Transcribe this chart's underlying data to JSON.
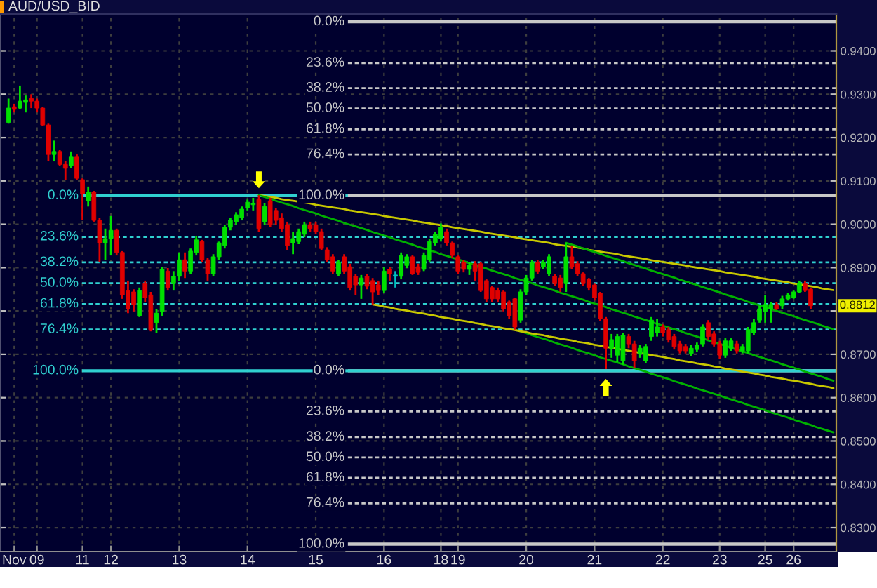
{
  "chart_data": {
    "type": "candlestick",
    "title": "AUD/USD_BID",
    "categories": [
      null,
      "Nov",
      null,
      null,
      null,
      "09",
      null,
      null,
      null,
      null,
      null,
      null,
      null,
      "11",
      null,
      null,
      null,
      null,
      "12",
      null,
      null,
      null,
      null,
      null,
      null,
      null,
      null,
      null,
      null,
      null,
      "13",
      null,
      null,
      null,
      null,
      null,
      null,
      null,
      null,
      null,
      null,
      null,
      "14",
      null,
      null,
      null,
      null,
      null,
      null,
      null,
      null,
      null,
      null,
      null,
      "15",
      null,
      null,
      null,
      null,
      null,
      null,
      null,
      null,
      null,
      null,
      null,
      "16",
      null,
      null,
      null,
      null,
      null,
      null,
      null,
      null,
      null,
      "18",
      null,
      null,
      "19",
      null,
      null,
      null,
      null,
      null,
      null,
      null,
      null,
      null,
      null,
      null,
      "20",
      null,
      null,
      null,
      null,
      null,
      null,
      null,
      null,
      null,
      null,
      null,
      "21",
      null,
      null,
      null,
      null,
      null,
      null,
      null,
      null,
      null,
      null,
      null,
      "22",
      null,
      null,
      null,
      null,
      null,
      null,
      null,
      null,
      null,
      "23",
      null,
      null,
      null,
      null,
      null,
      null,
      null,
      "25",
      null,
      null,
      null,
      null,
      "26",
      null,
      null,
      null,
      null,
      null,
      null,
      null
    ],
    "ohlc": [
      [
        0.9235,
        0.929,
        0.9232,
        0.9268
      ],
      [
        0.9271,
        0.9278,
        0.9258,
        0.9265
      ],
      [
        0.9268,
        0.932,
        0.9265,
        0.9284
      ],
      [
        0.9281,
        0.9297,
        0.9258,
        0.9287
      ],
      [
        0.929,
        0.93,
        0.9268,
        0.9284
      ],
      [
        0.9284,
        0.929,
        0.9258,
        0.9268
      ],
      [
        0.9268,
        0.9271,
        0.9226,
        0.9229
      ],
      [
        0.9229,
        0.9232,
        0.9145,
        0.9161
      ],
      [
        0.9161,
        0.9193,
        0.9145,
        0.9168
      ],
      [
        0.9168,
        0.9171,
        0.9135,
        0.9138
      ],
      [
        0.9138,
        0.9145,
        0.9103,
        0.9129
      ],
      [
        0.9135,
        0.9168,
        0.9129,
        0.9155
      ],
      [
        0.9155,
        0.9161,
        0.9103,
        0.9106
      ],
      [
        0.9103,
        0.9106,
        0.9009,
        0.907
      ],
      [
        0.9054,
        0.9087,
        0.9041,
        0.9074
      ],
      [
        0.9074,
        0.9077,
        0.9006,
        0.9009
      ],
      [
        0.9009,
        0.9015,
        0.8912,
        0.8957
      ],
      [
        0.8957,
        0.899,
        0.8918,
        0.8967
      ],
      [
        0.8967,
        0.9019,
        0.8928,
        0.8986
      ],
      [
        0.8986,
        0.899,
        0.8928,
        0.8935
      ],
      [
        0.8935,
        0.8938,
        0.8828,
        0.8837
      ],
      [
        0.8847,
        0.887,
        0.8795,
        0.8805
      ],
      [
        0.8844,
        0.885,
        0.8799,
        0.8815
      ],
      [
        0.8789,
        0.8854,
        0.8786,
        0.8847
      ],
      [
        0.8863,
        0.887,
        0.8821,
        0.8831
      ],
      [
        0.8837,
        0.8844,
        0.8753,
        0.8757
      ],
      [
        0.8773,
        0.8805,
        0.875,
        0.8795
      ],
      [
        0.8799,
        0.8902,
        0.8789,
        0.8896
      ],
      [
        0.8892,
        0.8899,
        0.8847,
        0.8854
      ],
      [
        0.8863,
        0.8892,
        0.8847,
        0.888
      ],
      [
        0.888,
        0.8935,
        0.887,
        0.8918
      ],
      [
        0.8918,
        0.8935,
        0.8876,
        0.8892
      ],
      [
        0.8892,
        0.8944,
        0.8886,
        0.8938
      ],
      [
        0.8935,
        0.8973,
        0.8928,
        0.8964
      ],
      [
        0.896,
        0.8964,
        0.8912,
        0.8918
      ],
      [
        0.8918,
        0.8922,
        0.887,
        0.8886
      ],
      [
        0.8886,
        0.8931,
        0.888,
        0.8925
      ],
      [
        0.8925,
        0.896,
        0.8918,
        0.8957
      ],
      [
        0.8951,
        0.8999,
        0.8944,
        0.8993
      ],
      [
        0.8993,
        0.9015,
        0.8986,
        0.9009
      ],
      [
        0.9006,
        0.9028,
        0.8999,
        0.9022
      ],
      [
        0.9015,
        0.9041,
        0.9009,
        0.9035
      ],
      [
        0.9038,
        0.9057,
        0.9032,
        0.9051
      ],
      [
        0.9045,
        0.9061,
        0.9032,
        0.9048
      ],
      [
        0.9057,
        0.9067,
        0.8983,
        0.899
      ],
      [
        0.9006,
        0.9048,
        0.8999,
        0.9041
      ],
      [
        0.9054,
        0.9061,
        0.8993,
        0.8999
      ],
      [
        0.9032,
        0.9038,
        0.8999,
        0.9009
      ],
      [
        0.9015,
        0.9025,
        0.8983,
        0.899
      ],
      [
        0.8999,
        0.9006,
        0.8941,
        0.8951
      ],
      [
        0.8957,
        0.8983,
        0.8931,
        0.8967
      ],
      [
        0.896,
        0.899,
        0.8954,
        0.8983
      ],
      [
        0.8977,
        0.9006,
        0.897,
        0.8999
      ],
      [
        0.8999,
        0.9006,
        0.8983,
        0.899
      ],
      [
        0.8999,
        0.9006,
        0.8977,
        0.8983
      ],
      [
        0.8983,
        0.899,
        0.8941,
        0.8944
      ],
      [
        0.8941,
        0.8947,
        0.8912,
        0.8918
      ],
      [
        0.8925,
        0.8931,
        0.8886,
        0.8892
      ],
      [
        0.8886,
        0.8918,
        0.888,
        0.8912
      ],
      [
        0.8925,
        0.8931,
        0.8886,
        0.8892
      ],
      [
        0.8902,
        0.8909,
        0.8847,
        0.8854
      ],
      [
        0.888,
        0.8886,
        0.8837,
        0.886
      ],
      [
        0.886,
        0.8883,
        0.8828,
        0.8876
      ],
      [
        0.888,
        0.8886,
        0.885,
        0.8857
      ],
      [
        0.887,
        0.8876,
        0.8815,
        0.8844
      ],
      [
        0.886,
        0.887,
        0.8837,
        0.8847
      ],
      [
        0.8847,
        0.8902,
        0.8841,
        0.8892
      ],
      [
        0.8896,
        0.8902,
        0.887,
        0.8886
      ],
      [
        0.888,
        0.8892,
        0.8854,
        0.8883
      ],
      [
        0.888,
        0.8935,
        0.8873,
        0.8928
      ],
      [
        0.8905,
        0.8931,
        0.8899,
        0.8925
      ],
      [
        0.8925,
        0.8928,
        0.8883,
        0.8886
      ],
      [
        0.8902,
        0.8909,
        0.8883,
        0.8889
      ],
      [
        0.8896,
        0.8935,
        0.8892,
        0.8928
      ],
      [
        0.8918,
        0.8967,
        0.8912,
        0.896
      ],
      [
        0.8957,
        0.8983,
        0.8951,
        0.8977
      ],
      [
        0.8967,
        0.9002,
        0.896,
        0.8993
      ],
      [
        0.8983,
        0.899,
        0.8951,
        0.8957
      ],
      [
        0.8957,
        0.896,
        0.8922,
        0.8928
      ],
      [
        0.8925,
        0.8928,
        0.8886,
        0.8892
      ],
      [
        0.8912,
        0.8918,
        0.8889,
        0.8896
      ],
      [
        0.8896,
        0.8912,
        0.8883,
        0.8905
      ],
      [
        0.8909,
        0.8915,
        0.887,
        0.8892
      ],
      [
        0.8909,
        0.8912,
        0.8844,
        0.8847
      ],
      [
        0.887,
        0.8873,
        0.8821,
        0.8828
      ],
      [
        0.8854,
        0.8857,
        0.8821,
        0.8828
      ],
      [
        0.8847,
        0.8854,
        0.8821,
        0.8828
      ],
      [
        0.8844,
        0.8847,
        0.8799,
        0.8805
      ],
      [
        0.8821,
        0.8824,
        0.8782,
        0.8789
      ],
      [
        0.8828,
        0.8831,
        0.8757,
        0.8763
      ],
      [
        0.8779,
        0.885,
        0.8773,
        0.8844
      ],
      [
        0.8844,
        0.8883,
        0.8837,
        0.8876
      ],
      [
        0.8876,
        0.8918,
        0.887,
        0.8912
      ],
      [
        0.8912,
        0.8918,
        0.8886,
        0.8892
      ],
      [
        0.8902,
        0.8918,
        0.8896,
        0.8912
      ],
      [
        0.8886,
        0.8931,
        0.888,
        0.8925
      ],
      [
        0.888,
        0.8886,
        0.8857,
        0.8863
      ],
      [
        0.8876,
        0.8883,
        0.8844,
        0.8854
      ],
      [
        0.8863,
        0.8957,
        0.8844,
        0.8925
      ],
      [
        0.8925,
        0.8951,
        0.8896,
        0.8902
      ],
      [
        0.8909,
        0.8915,
        0.888,
        0.8886
      ],
      [
        0.8886,
        0.8889,
        0.8857,
        0.8863
      ],
      [
        0.8873,
        0.8876,
        0.8847,
        0.8854
      ],
      [
        0.886,
        0.8863,
        0.8824,
        0.8831
      ],
      [
        0.8841,
        0.8844,
        0.8776,
        0.8782
      ],
      [
        0.8782,
        0.8786,
        0.8666,
        0.8714
      ],
      [
        0.8714,
        0.8747,
        0.8692,
        0.8734
      ],
      [
        0.8698,
        0.8747,
        0.8682,
        0.8741
      ],
      [
        0.8685,
        0.875,
        0.8676,
        0.8744
      ],
      [
        0.8741,
        0.8747,
        0.8714,
        0.8724
      ],
      [
        0.8724,
        0.8731,
        0.8669,
        0.8685
      ],
      [
        0.8702,
        0.8721,
        0.8692,
        0.8714
      ],
      [
        0.8685,
        0.8724,
        0.8679,
        0.8718
      ],
      [
        0.8741,
        0.8786,
        0.8731,
        0.8779
      ],
      [
        0.875,
        0.8782,
        0.8741,
        0.8763
      ],
      [
        0.8763,
        0.8769,
        0.8741,
        0.875
      ],
      [
        0.8757,
        0.8763,
        0.8727,
        0.8734
      ],
      [
        0.8741,
        0.8747,
        0.8711,
        0.8718
      ],
      [
        0.8724,
        0.8731,
        0.8702,
        0.8708
      ],
      [
        0.8718,
        0.8724,
        0.8702,
        0.8708
      ],
      [
        0.8702,
        0.8721,
        0.8695,
        0.8714
      ],
      [
        0.8711,
        0.8727,
        0.8705,
        0.8721
      ],
      [
        0.8724,
        0.8769,
        0.8718,
        0.8763
      ],
      [
        0.8773,
        0.8779,
        0.8734,
        0.8741
      ],
      [
        0.8747,
        0.8753,
        0.8718,
        0.8724
      ],
      [
        0.8724,
        0.8731,
        0.8689,
        0.8698
      ],
      [
        0.8698,
        0.8737,
        0.8692,
        0.8731
      ],
      [
        0.8714,
        0.8737,
        0.8708,
        0.8731
      ],
      [
        0.8724,
        0.8731,
        0.8702,
        0.8708
      ],
      [
        0.8708,
        0.8724,
        0.8702,
        0.8718
      ],
      [
        0.8708,
        0.8763,
        0.8702,
        0.8757
      ],
      [
        0.875,
        0.8782,
        0.8744,
        0.8773
      ],
      [
        0.8779,
        0.8812,
        0.8773,
        0.8805
      ],
      [
        0.8799,
        0.8837,
        0.8773,
        0.8815
      ],
      [
        0.8805,
        0.8821,
        0.8773,
        0.8815
      ],
      [
        0.8815,
        0.8821,
        0.8802,
        0.8805
      ],
      [
        0.8812,
        0.8835,
        0.8805,
        0.8828
      ],
      [
        0.8828,
        0.8841,
        0.8824,
        0.8837
      ],
      [
        0.8831,
        0.8847,
        0.8828,
        0.8844
      ],
      [
        0.8844,
        0.887,
        0.8841,
        0.8863
      ],
      [
        0.8863,
        0.887,
        0.8844,
        0.8847
      ],
      [
        0.885,
        0.8854,
        0.8805,
        0.8812
      ],
      null,
      null,
      null,
      null
    ],
    "colors": [
      "#00e000",
      "#e00000",
      "#00e000",
      "#00e000",
      "#e00000",
      "#e00000",
      "#e00000",
      "#e00000",
      "#00e000",
      "#e00000",
      "#e00000",
      "#00e000",
      "#e00000",
      "#e00000",
      "#00e000",
      "#e00000",
      "#e00000",
      "#00e000",
      "#00e000",
      "#e00000",
      "#e00000",
      "#e00000",
      "#e00000",
      "#00e000",
      "#e00000",
      "#e00000",
      "#00e000",
      "#00e000",
      "#e00000",
      "#00e000",
      "#00e000",
      "#e00000",
      "#00e000",
      "#00e000",
      "#e00000",
      "#e00000",
      "#00e000",
      "#00e000",
      "#00e000",
      "#00e000",
      "#00e000",
      "#00e000",
      "#00e000",
      "#00e000",
      "#e00000",
      "#00e000",
      "#e00000",
      "#e00000",
      "#e00000",
      "#e00000",
      "#00e000",
      "#00e000",
      "#00e000",
      "#e00000",
      "#e00000",
      "#e00000",
      "#e00000",
      "#e00000",
      "#00e000",
      "#e00000",
      "#e00000",
      "#e00000",
      "#00e000",
      "#e00000",
      "#e00000",
      "#e00000",
      "#00e000",
      "#e00000",
      "#00c0c0",
      "#00e000",
      "#00e000",
      "#e00000",
      "#e00000",
      "#00e000",
      "#00e000",
      "#00e000",
      "#00e000",
      "#e00000",
      "#e00000",
      "#e00000",
      "#e00000",
      "#00e000",
      "#e00000",
      "#e00000",
      "#e00000",
      "#e00000",
      "#e00000",
      "#e00000",
      "#e00000",
      "#e00000",
      "#00e000",
      "#00e000",
      "#00e000",
      "#e00000",
      "#00e000",
      "#00e000",
      "#e00000",
      "#e00000",
      "#00e000",
      "#e00000",
      "#e00000",
      "#e00000",
      "#e00000",
      "#e00000",
      "#e00000",
      "#e00000",
      "#00e000",
      "#00e000",
      "#00e000",
      "#e00000",
      "#e00000",
      "#00e000",
      "#00e000",
      "#00e000",
      "#00e000",
      "#e00000",
      "#e00000",
      "#e00000",
      "#e00000",
      "#e00000",
      "#00e000",
      "#00e000",
      "#00e000",
      "#e00000",
      "#e00000",
      "#e00000",
      "#00e000",
      "#00e000",
      "#e00000",
      "#00e000",
      "#00e000",
      "#00e000",
      "#00e000",
      "#00e000",
      "#00e000",
      "#e00000",
      "#00e000",
      "#00e000",
      "#00e000",
      "#00e000",
      "#e00000",
      "#e00000",
      null,
      null,
      null,
      null
    ],
    "series": [
      {
        "type": "line",
        "color": "#c8c800",
        "values": [
          null,
          null,
          null,
          null,
          null,
          null,
          null,
          null,
          null,
          null,
          null,
          null,
          null,
          null,
          null,
          null,
          null,
          null,
          null,
          null,
          null,
          null,
          null,
          null,
          null,
          null,
          null,
          null,
          null,
          null,
          null,
          null,
          null,
          null,
          null,
          null,
          null,
          null,
          null,
          null,
          null,
          null,
          null,
          null,
          0.9067,
          0.9065,
          0.9063,
          0.9061,
          0.9058,
          0.9056,
          0.9054,
          0.9052,
          0.905,
          0.9048,
          0.9045,
          0.9043,
          0.9041,
          0.9039,
          0.9037,
          0.9035,
          0.9032,
          0.903,
          0.9028,
          0.9026,
          0.9024,
          0.9022,
          0.9019,
          0.9017,
          0.9015,
          0.9013,
          0.9011,
          0.9009,
          0.9006,
          0.9004,
          0.9002,
          0.9,
          0.8998,
          0.8996,
          0.8993,
          0.8991,
          0.8989,
          0.8987,
          0.8985,
          0.8983,
          0.898,
          0.8978,
          0.8976,
          0.8974,
          0.8972,
          0.897,
          0.8967,
          0.8965,
          0.8963,
          0.8961,
          0.8959,
          0.8957,
          0.8954,
          0.8952,
          0.895,
          0.8948,
          0.8946,
          0.8944,
          0.8941,
          0.8939,
          0.8937,
          0.8935,
          0.8933,
          0.8931,
          0.8928,
          0.8926,
          0.8924,
          0.8922,
          0.892,
          0.8917,
          0.8915,
          0.8913,
          0.8911,
          0.8909,
          0.8907,
          0.8905,
          0.8902,
          0.89,
          0.8898,
          0.8896,
          0.8894,
          0.8892,
          0.8889,
          0.8887,
          0.8885,
          0.8883,
          0.8881,
          0.8879,
          0.8876,
          0.8874,
          0.8872,
          0.887,
          0.8868,
          0.8866,
          0.8863,
          0.8861,
          0.8859,
          0.8857,
          0.8855,
          0.8852,
          0.885,
          0.8848
        ]
      },
      {
        "type": "line",
        "color": "#00b000",
        "values": [
          null,
          null,
          null,
          null,
          null,
          null,
          null,
          null,
          null,
          null,
          null,
          null,
          null,
          null,
          null,
          null,
          null,
          null,
          null,
          null,
          null,
          null,
          null,
          null,
          null,
          null,
          null,
          null,
          null,
          null,
          null,
          null,
          null,
          null,
          null,
          null,
          null,
          null,
          null,
          null,
          null,
          null,
          null,
          null,
          0.9067,
          0.9063,
          0.9059,
          0.9054,
          0.905,
          0.9046,
          0.9042,
          0.9037,
          0.9033,
          0.9029,
          0.9025,
          0.902,
          0.9016,
          0.9012,
          0.9008,
          0.9003,
          0.8999,
          0.8995,
          0.8991,
          0.8987,
          0.8982,
          0.8978,
          0.8974,
          0.897,
          0.8965,
          0.8961,
          0.8957,
          0.8953,
          0.8948,
          0.8944,
          0.894,
          0.8936,
          0.8931,
          0.8927,
          0.8923,
          0.8919,
          0.8915,
          0.891,
          0.8906,
          0.8902,
          0.8898,
          0.8893,
          0.8889,
          0.8885,
          0.8881,
          0.8876,
          0.8872,
          0.8868,
          0.8864,
          0.8859,
          0.8855,
          0.8851,
          0.8847,
          0.8842,
          0.8838,
          0.8834,
          0.883,
          0.8826,
          0.8821,
          0.8817,
          0.8813,
          0.8809,
          0.8804,
          0.88,
          0.8796,
          0.8792,
          0.8787,
          0.8783,
          0.8779,
          0.8775,
          0.877,
          0.8766,
          0.8762,
          0.8758,
          0.8754,
          0.8749,
          0.8745,
          0.8741,
          0.8737,
          0.8732,
          0.8728,
          0.8724,
          0.872,
          0.8715,
          0.8711,
          0.8707,
          0.8703,
          0.8698,
          0.8694,
          0.869,
          0.8686,
          0.8682,
          0.8677,
          0.8673,
          0.8669,
          0.8665,
          0.866,
          0.8656,
          0.8652,
          0.8648,
          0.8643,
          0.8639
        ]
      },
      {
        "type": "line",
        "color": "#00b000",
        "values": [
          null,
          null,
          null,
          null,
          null,
          null,
          null,
          null,
          null,
          null,
          null,
          null,
          null,
          null,
          null,
          null,
          null,
          null,
          null,
          null,
          null,
          null,
          null,
          null,
          null,
          null,
          null,
          null,
          null,
          null,
          null,
          null,
          null,
          null,
          null,
          null,
          null,
          null,
          null,
          null,
          null,
          null,
          null,
          null,
          null,
          null,
          null,
          null,
          null,
          null,
          null,
          null,
          null,
          null,
          null,
          null,
          null,
          null,
          null,
          null,
          null,
          null,
          null,
          null,
          null,
          null,
          null,
          null,
          null,
          null,
          null,
          null,
          null,
          null,
          null,
          null,
          null,
          null,
          null,
          null,
          null,
          null,
          null,
          null,
          null,
          null,
          null,
          null,
          null,
          null,
          null,
          null,
          null,
          null,
          null,
          null,
          null,
          null,
          0.8957,
          0.8953,
          0.8949,
          0.8944,
          0.894,
          0.8936,
          0.8932,
          0.8927,
          0.8923,
          0.8919,
          0.8915,
          0.891,
          0.8906,
          0.8902,
          0.8898,
          0.8893,
          0.8889,
          0.8885,
          0.8881,
          0.8877,
          0.8872,
          0.8868,
          0.8864,
          0.886,
          0.8855,
          0.8851,
          0.8847,
          0.8843,
          0.8838,
          0.8834,
          0.883,
          0.8826,
          0.8821,
          0.8817,
          0.8813,
          0.8809,
          0.8805,
          0.88,
          0.8796,
          0.8792,
          0.8788,
          0.8783,
          0.8779,
          0.8775,
          0.8771,
          0.8766,
          0.8762,
          0.8758
        ]
      },
      {
        "type": "line",
        "color": "#00b000",
        "values": [
          null,
          null,
          null,
          null,
          null,
          null,
          null,
          null,
          null,
          null,
          null,
          null,
          null,
          null,
          null,
          null,
          null,
          null,
          null,
          null,
          null,
          null,
          null,
          null,
          null,
          null,
          null,
          null,
          null,
          null,
          null,
          null,
          null,
          null,
          null,
          null,
          null,
          null,
          null,
          null,
          null,
          null,
          null,
          null,
          null,
          null,
          null,
          null,
          null,
          null,
          null,
          null,
          null,
          null,
          null,
          null,
          null,
          null,
          null,
          null,
          null,
          null,
          null,
          null,
          null,
          null,
          null,
          null,
          null,
          null,
          null,
          null,
          null,
          null,
          null,
          null,
          null,
          null,
          null,
          null,
          null,
          null,
          null,
          null,
          null,
          null,
          null,
          null,
          null,
          0.8757,
          0.8753,
          0.8749,
          0.8744,
          0.874,
          0.8736,
          0.8732,
          0.8727,
          0.8723,
          0.8719,
          0.8715,
          0.871,
          0.8706,
          0.8702,
          0.8698,
          0.8693,
          0.8689,
          0.8685,
          0.8681,
          0.8677,
          0.8672,
          0.8668,
          0.8664,
          0.866,
          0.8655,
          0.8651,
          0.8647,
          0.8643,
          0.8638,
          0.8634,
          0.863,
          0.8626,
          0.8621,
          0.8617,
          0.8613,
          0.8609,
          0.8605,
          0.86,
          0.8596,
          0.8592,
          0.8588,
          0.8583,
          0.8579,
          0.8575,
          0.8571,
          0.8566,
          0.8562,
          0.8558,
          0.8554,
          0.8549,
          0.8545,
          0.8541,
          0.8537,
          0.8532,
          0.8528,
          0.8524,
          0.852
        ]
      },
      {
        "type": "line",
        "color": "#c8c800",
        "values": [
          null,
          null,
          null,
          null,
          null,
          null,
          null,
          null,
          null,
          null,
          null,
          null,
          null,
          null,
          null,
          null,
          null,
          null,
          null,
          null,
          null,
          null,
          null,
          null,
          null,
          null,
          null,
          null,
          null,
          null,
          null,
          null,
          null,
          null,
          null,
          null,
          null,
          null,
          null,
          null,
          null,
          null,
          null,
          null,
          null,
          null,
          null,
          null,
          null,
          null,
          null,
          null,
          null,
          null,
          null,
          null,
          null,
          null,
          null,
          null,
          null,
          null,
          null,
          null,
          0.8815,
          0.8813,
          0.881,
          0.8808,
          0.8805,
          0.8803,
          0.8801,
          0.8798,
          0.8796,
          0.8794,
          0.8791,
          0.8789,
          0.8786,
          0.8784,
          0.8782,
          0.8779,
          0.8777,
          0.8775,
          0.8772,
          0.877,
          0.8767,
          0.8765,
          0.8763,
          0.876,
          0.8758,
          0.8756,
          0.8753,
          0.8751,
          0.8748,
          0.8746,
          0.8744,
          0.8741,
          0.8739,
          0.8736,
          0.8734,
          0.8732,
          0.8729,
          0.8727,
          0.8725,
          0.8722,
          0.872,
          0.8717,
          0.8715,
          0.8713,
          0.871,
          0.8708,
          0.8706,
          0.8703,
          0.8701,
          0.8698,
          0.8696,
          0.8694,
          0.8691,
          0.8689,
          0.8686,
          0.8684,
          0.8682,
          0.8679,
          0.8677,
          0.8675,
          0.8672,
          0.867,
          0.8667,
          0.8665,
          0.8663,
          0.866,
          0.8658,
          0.8656,
          0.8653,
          0.8651,
          0.8648,
          0.8646,
          0.8644,
          0.8641,
          0.8639,
          0.8637,
          0.8634,
          0.8632,
          0.8629,
          0.8627,
          0.8625,
          0.8622
        ]
      }
    ],
    "ylim": [
      0.8245,
      0.9485
    ],
    "yticks": [
      {
        "value": 0.83,
        "label": "0.8300"
      },
      {
        "value": 0.84,
        "label": "0.8400"
      },
      {
        "value": 0.85,
        "label": "0.8500"
      },
      {
        "value": 0.86,
        "label": "0.8600"
      },
      {
        "value": 0.87,
        "label": "0.8700"
      },
      {
        "value": 0.88,
        "label": null
      },
      {
        "value": 0.89,
        "label": "0.8900"
      },
      {
        "value": 0.9,
        "label": "0.9000"
      },
      {
        "value": 0.91,
        "label": "0.9100"
      },
      {
        "value": 0.92,
        "label": "0.9200"
      },
      {
        "value": 0.93,
        "label": "0.9300"
      },
      {
        "value": 0.94,
        "label": "0.9400"
      }
    ],
    "grid": true,
    "ref_lines": [
      {
        "axis": "y",
        "value": 0.8662,
        "color": "#c8c8c8",
        "line_style": "solid"
      },
      {
        "axis": "y",
        "value": 0.8568,
        "color": "#c8c8c8",
        "line_style": "dashed"
      },
      {
        "axis": "y",
        "value": 0.8509,
        "color": "#c8c8c8",
        "line_style": "dashed"
      },
      {
        "axis": "y",
        "value": 0.8462,
        "color": "#c8c8c8",
        "line_style": "dashed"
      },
      {
        "axis": "y",
        "value": 0.8415,
        "color": "#c8c8c8",
        "line_style": "dashed"
      },
      {
        "axis": "y",
        "value": 0.8356,
        "color": "#c8c8c8",
        "line_style": "dashed"
      },
      {
        "axis": "y",
        "value": 0.8262,
        "color": "#c8c8c8",
        "line_style": "solid"
      },
      {
        "axis": "y",
        "value": 0.9066,
        "color": "#30d0d0",
        "line_style": "solid"
      },
      {
        "axis": "y",
        "value": 0.8971,
        "color": "#30d0d0",
        "line_style": "dashed"
      },
      {
        "axis": "y",
        "value": 0.8912,
        "color": "#30d0d0",
        "line_style": "dashed"
      },
      {
        "axis": "y",
        "value": 0.8864,
        "color": "#30d0d0",
        "line_style": "dashed"
      },
      {
        "axis": "y",
        "value": 0.8816,
        "color": "#30d0d0",
        "line_style": "dashed"
      },
      {
        "axis": "y",
        "value": 0.8757,
        "color": "#30d0d0",
        "line_style": "dashed"
      },
      {
        "axis": "y",
        "value": 0.8662,
        "color": "#30d0d0",
        "line_style": "solid"
      },
      {
        "axis": "y",
        "value": 0.9467,
        "color": "#c8c8c8",
        "line_style": "solid"
      },
      {
        "axis": "y",
        "value": 0.9372,
        "color": "#c8c8c8",
        "line_style": "dashed"
      },
      {
        "axis": "y",
        "value": 0.9314,
        "color": "#c8c8c8",
        "line_style": "dashed"
      },
      {
        "axis": "y",
        "value": 0.9267,
        "color": "#c8c8c8",
        "line_style": "dashed"
      },
      {
        "axis": "y",
        "value": 0.9219,
        "color": "#c8c8c8",
        "line_style": "dashed"
      },
      {
        "axis": "y",
        "value": 0.9161,
        "color": "#c8c8c8",
        "line_style": "dashed"
      },
      {
        "axis": "y",
        "value": 0.9066,
        "color": "#c8c8c8",
        "line_style": "solid"
      }
    ],
    "annotations": [
      "0.0%",
      "23.6%",
      "38.2%",
      "50.0%",
      "61.8%",
      "76.4%",
      "100.0%",
      "0.0%",
      "23.6%",
      "38.2%",
      "50.0%",
      "61.8%",
      "76.4%",
      "100.0%",
      "0.0%",
      "23.6%",
      "38.2%",
      "50.0%",
      "61.8%",
      "76.4%",
      "100.0%",
      {
        "text": "0.8812",
        "y": 0.8812
      }
    ]
  }
}
